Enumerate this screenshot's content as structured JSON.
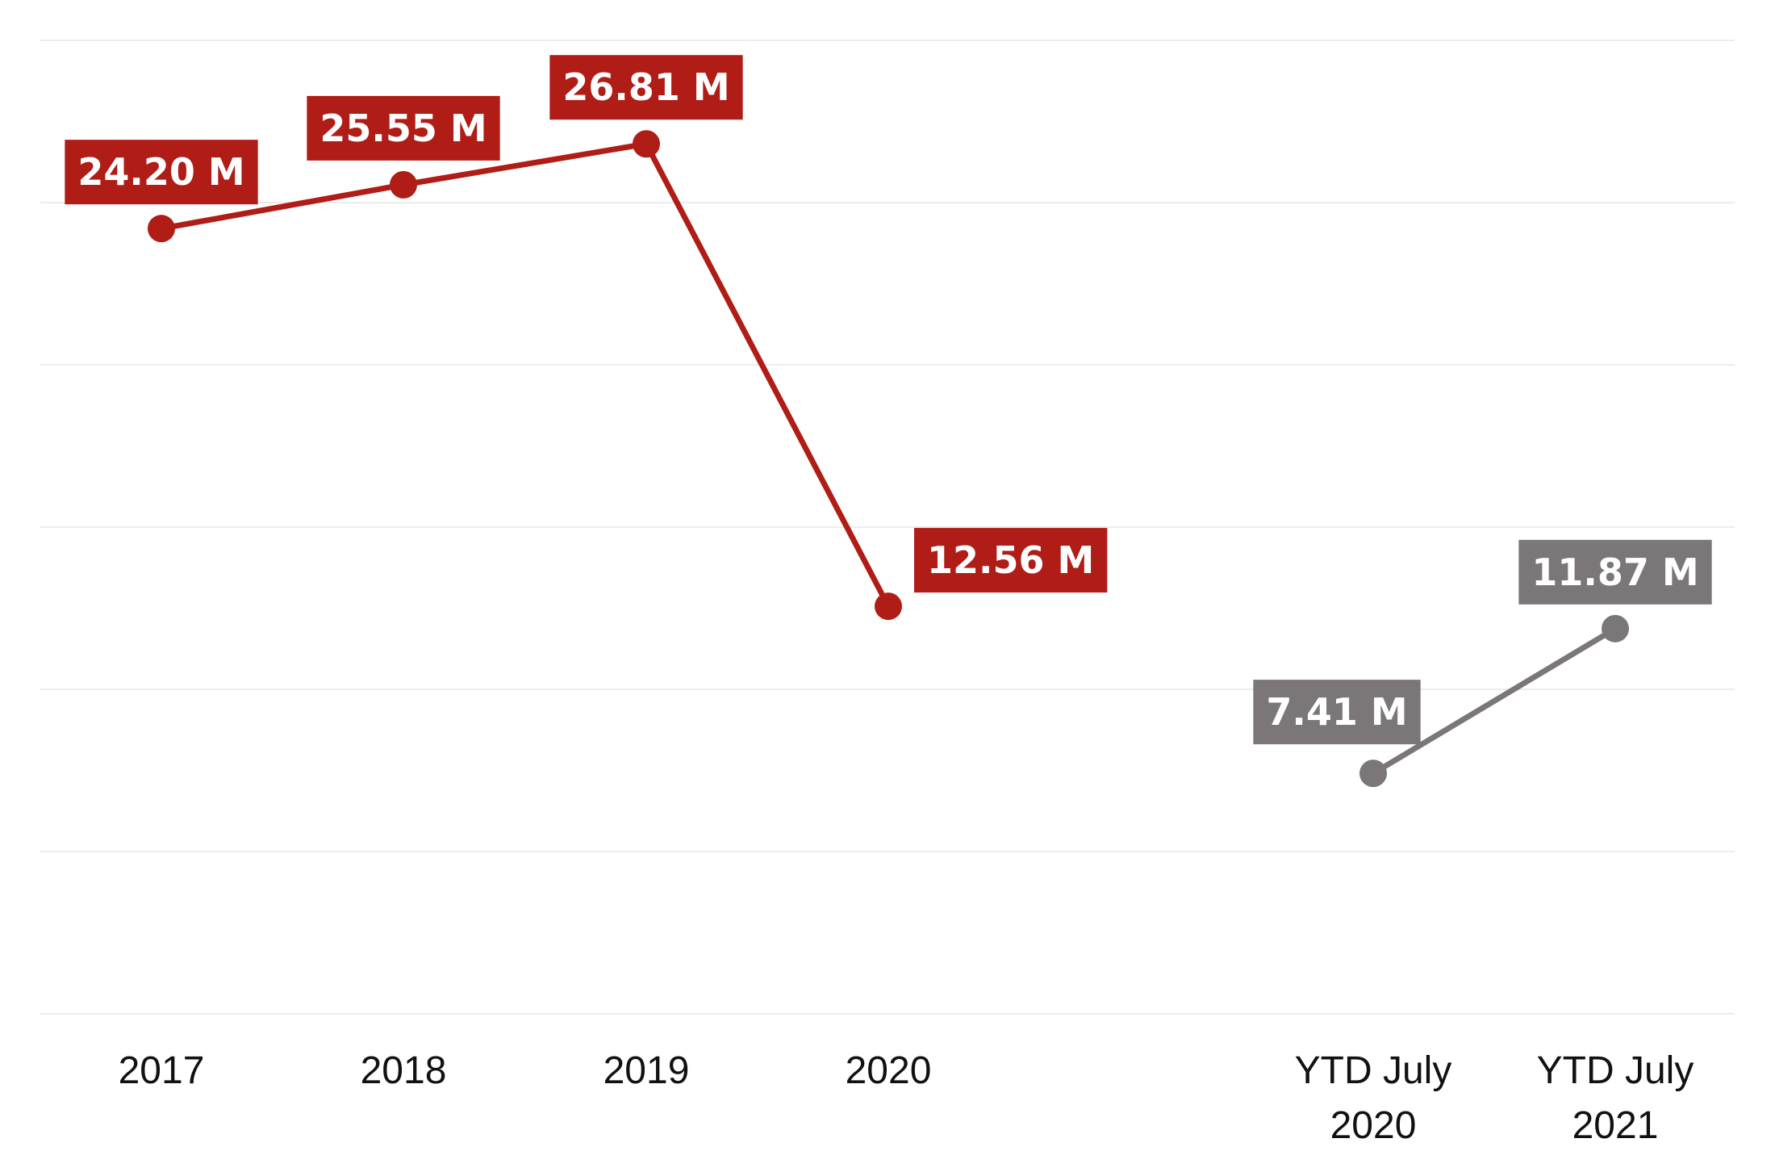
{
  "chart_data": {
    "type": "line",
    "title": "",
    "xlabel": "",
    "ylabel": "",
    "ylim": [
      0,
      30
    ],
    "grid": true,
    "categories": [
      "2017",
      "2018",
      "2019",
      "2020",
      "YTD July 2020",
      "YTD July 2021"
    ],
    "series": [
      {
        "values": [
          24.2,
          25.55,
          26.81,
          12.56,
          null,
          null
        ],
        "labels": [
          "24.20 M",
          "25.55 M",
          "26.81 M",
          "12.56 M",
          null,
          null
        ],
        "color": "#b01c16"
      },
      {
        "values": [
          null,
          null,
          null,
          null,
          7.41,
          11.87
        ],
        "labels": [
          null,
          null,
          null,
          null,
          "7.41 M",
          "11.87 M"
        ],
        "color": "#7b7677"
      }
    ]
  }
}
